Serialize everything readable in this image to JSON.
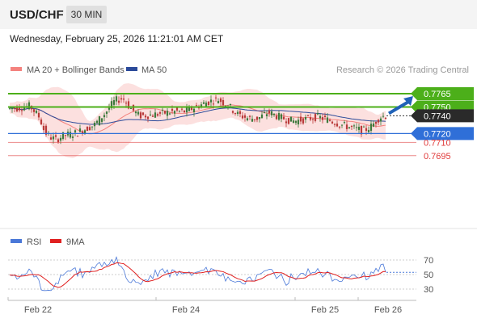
{
  "header": {
    "symbol": "USD/CHF",
    "timeframe": "30 MIN"
  },
  "datetime": "Wednesday, February 25, 2026 11:21:01 AM CET",
  "legend": {
    "ma20": {
      "label": "MA 20 + Bollinger Bands",
      "color": "#f4827e"
    },
    "ma50": {
      "label": "MA 50",
      "color": "#2b4a9a"
    }
  },
  "credit": "Research © 2026 Trading Central",
  "chart_data": [
    {
      "type": "candlestick",
      "title": "USD/CHF",
      "timeframe": "30 MIN",
      "ylim": [
        0.768,
        0.7775
      ],
      "x_ticks": [
        "Feb 22",
        "Feb 24",
        "Feb 25",
        "Feb 26"
      ],
      "current_price": {
        "label": "0.7740",
        "value": 0.774
      },
      "levels": [
        {
          "label": "0.7765",
          "value": 0.7765,
          "kind": "resistance",
          "color": "#4caf1a"
        },
        {
          "label": "0.7750",
          "value": 0.775,
          "kind": "resistance",
          "color": "#4caf1a"
        },
        {
          "label": "0.7720",
          "value": 0.772,
          "kind": "pivot",
          "color": "#2f6fd8"
        },
        {
          "label": "0.7710",
          "value": 0.771,
          "kind": "support",
          "color": "#e03a3a"
        },
        {
          "label": "0.7695",
          "value": 0.7695,
          "kind": "support",
          "color": "#e03a3a"
        }
      ],
      "projection": {
        "from": 0.774,
        "to": 0.7765,
        "direction": "up",
        "color": "#2062b8"
      },
      "series": [
        {
          "name": "MA 20 + Bollinger Bands",
          "color": "#f4827e"
        },
        {
          "name": "MA 50",
          "color": "#2b4a9a"
        }
      ]
    },
    {
      "type": "line",
      "ylim": [
        20,
        80
      ],
      "y_ticks": [
        "70",
        "50",
        "30"
      ],
      "y_tick_values": [
        70,
        50,
        30
      ],
      "series": [
        {
          "name": "RSI",
          "color": "#4a78d8"
        },
        {
          "name": "9MA",
          "color": "#e02020"
        }
      ]
    }
  ]
}
